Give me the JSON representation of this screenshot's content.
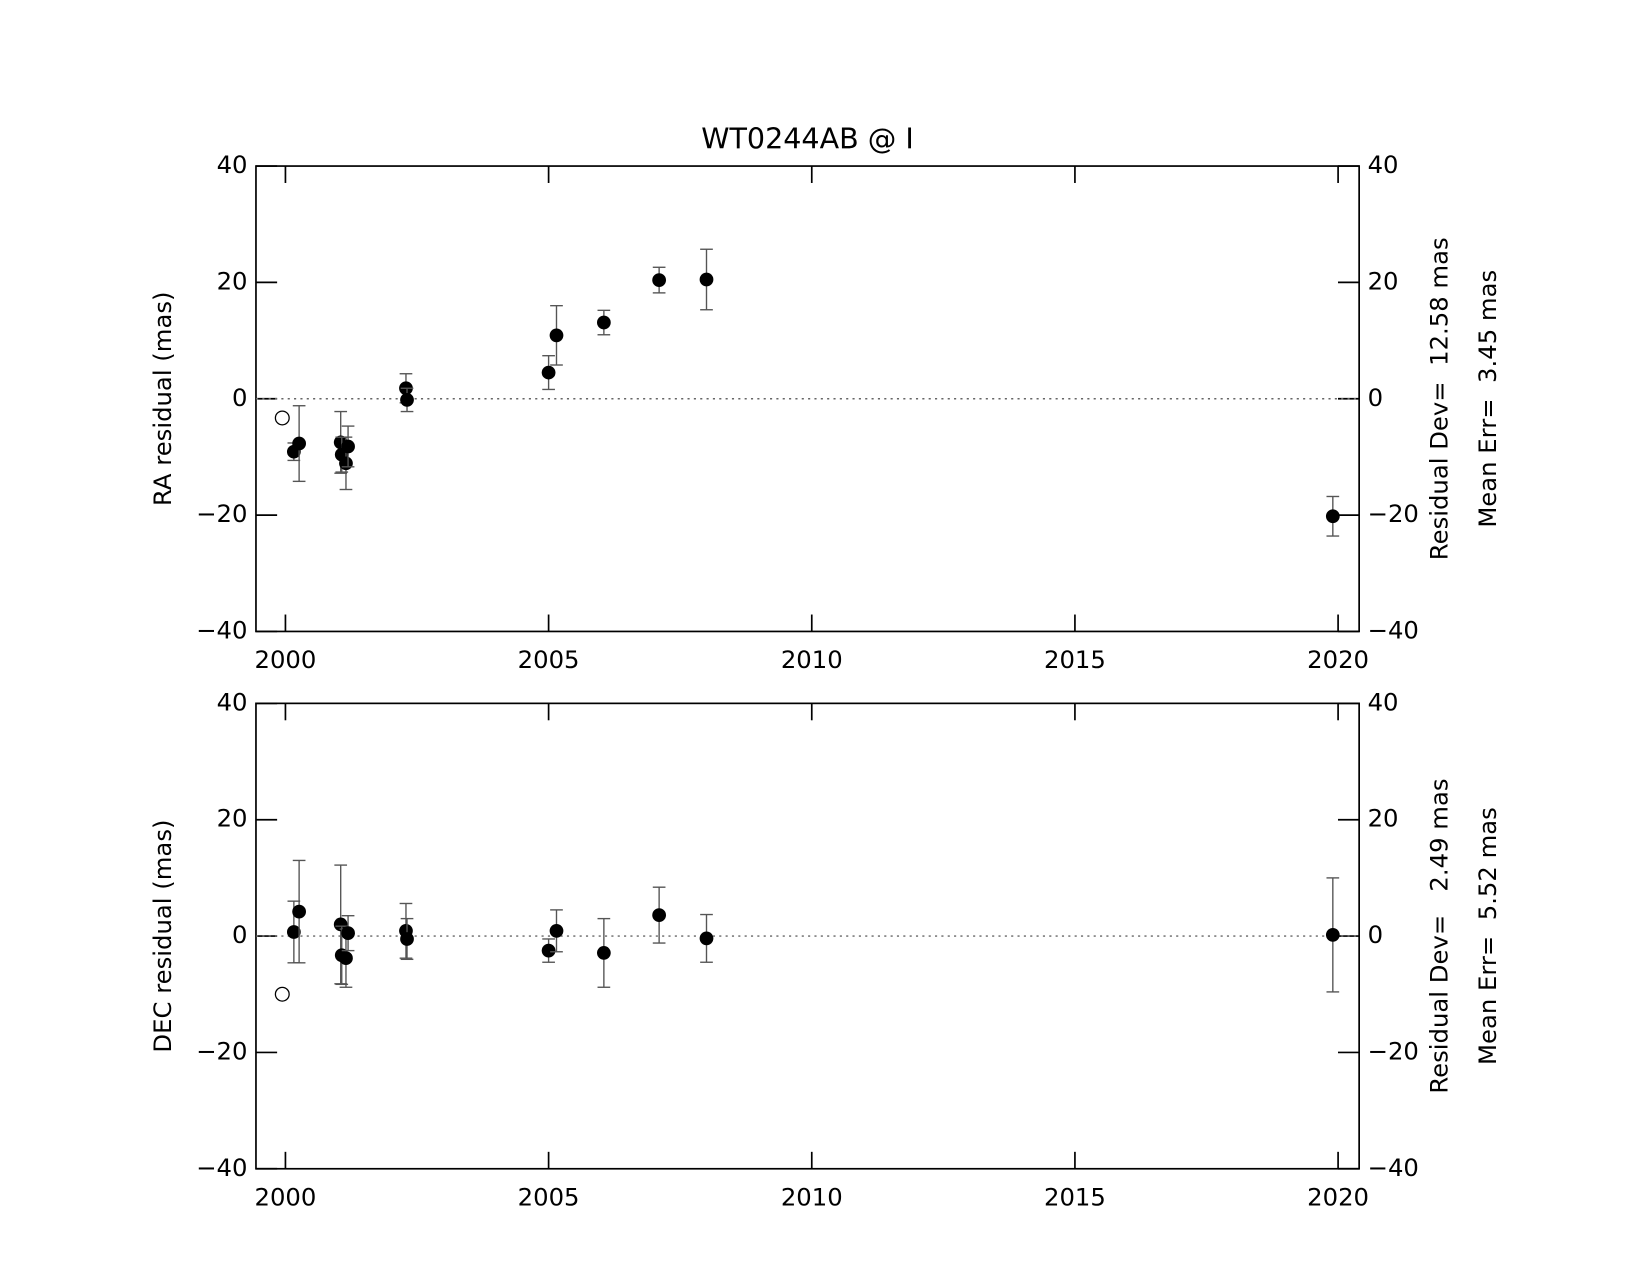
{
  "chart_data": [
    {
      "type": "scatter",
      "title": "WT0244AB @ I",
      "ylabel": "RA residual (mas)",
      "annotations": [
        "Residual Dev=  12.58 mas",
        "Mean Err=  3.45 mas"
      ],
      "x": [
        2000.16,
        2000.26,
        2001.05,
        2001.07,
        2001.15,
        2001.19,
        2002.29,
        2002.31,
        2005.0,
        2005.15,
        2006.05,
        2007.1,
        2008.0,
        2019.9
      ],
      "values": [
        -9.1,
        -7.7,
        -7.5,
        -9.6,
        -11.1,
        -8.2,
        1.8,
        -0.2,
        4.5,
        10.9,
        13.1,
        20.4,
        20.5,
        -20.2
      ],
      "errors": [
        1.5,
        6.5,
        5.3,
        3.0,
        4.5,
        3.5,
        2.5,
        2.0,
        2.9,
        5.1,
        2.1,
        2.2,
        5.2,
        3.4
      ],
      "color": "#000000",
      "error_color": "#555555",
      "rejected": {
        "x": [
          1999.94
        ],
        "values": [
          -3.3
        ]
      },
      "reference_line": 0,
      "xlim": [
        1999.44,
        2020.4
      ],
      "xticks": [
        2000,
        2005,
        2010,
        2015,
        2020
      ],
      "ylim": [
        -40,
        40
      ],
      "yticks": [
        {
          "value": -40,
          "label": "−40"
        },
        {
          "value": -20,
          "label": "−20"
        },
        0,
        20,
        40
      ],
      "y2lim": [
        -40,
        40
      ],
      "y2ticks": [
        {
          "value": -40,
          "label": "−40"
        },
        {
          "value": -20,
          "label": "−20"
        },
        0,
        20,
        40
      ]
    },
    {
      "type": "scatter",
      "ylabel": "DEC residual (mas)",
      "annotations": [
        "Residual Dev=   2.49 mas",
        "Mean Err=  5.52 mas"
      ],
      "x": [
        2000.16,
        2000.26,
        2001.05,
        2001.07,
        2001.15,
        2001.19,
        2002.29,
        2002.31,
        2005.0,
        2005.15,
        2006.05,
        2007.1,
        2008.0,
        2019.9
      ],
      "values": [
        0.7,
        4.2,
        2.0,
        -3.3,
        -3.8,
        0.5,
        0.9,
        -0.5,
        -2.5,
        0.9,
        -2.9,
        3.6,
        -0.4,
        0.2
      ],
      "errors": [
        5.3,
        8.8,
        10.2,
        5.0,
        5.0,
        3.0,
        4.7,
        3.5,
        2.0,
        3.6,
        5.9,
        4.8,
        4.1,
        9.8
      ],
      "color": "#000000",
      "error_color": "#555555",
      "rejected": {
        "x": [
          1999.94
        ],
        "values": [
          -10.0
        ]
      },
      "reference_line": 0,
      "xlim": [
        1999.44,
        2020.4
      ],
      "xticks": [
        2000,
        2005,
        2010,
        2015,
        2020
      ],
      "ylim": [
        -40,
        40
      ],
      "yticks": [
        {
          "value": -40,
          "label": "−40"
        },
        {
          "value": -20,
          "label": "−20"
        },
        0,
        20,
        40
      ],
      "y2lim": [
        -40,
        40
      ],
      "y2ticks": [
        {
          "value": -40,
          "label": "−40"
        },
        {
          "value": -20,
          "label": "−20"
        },
        0,
        20,
        40
      ]
    }
  ]
}
